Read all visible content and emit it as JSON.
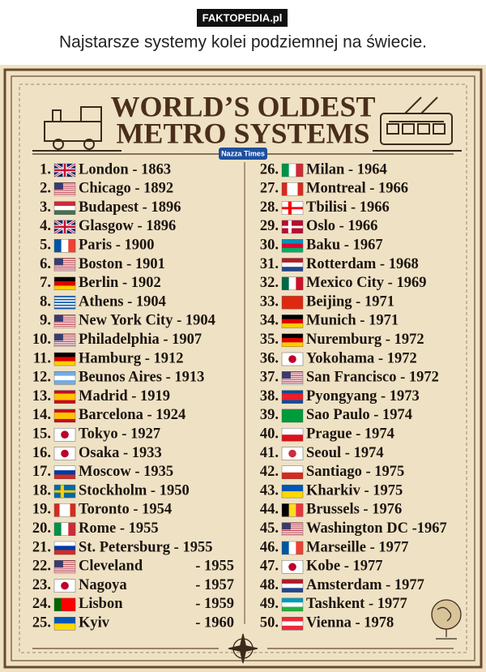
{
  "header": {
    "source": "FAKTOPEDIA.pl",
    "caption": "Najstarsze systemy kolei podziemnej na świecie."
  },
  "poster": {
    "title_line1": "WORLD’S OLDEST",
    "title_line2": "METRO SYSTEMS",
    "badge": "Nazza Times",
    "entries": [
      {
        "rank": "1.",
        "label": "London - 1863"
      },
      {
        "rank": "2.",
        "label": "Chicago - 1892"
      },
      {
        "rank": "3.",
        "label": "Budapest - 1896"
      },
      {
        "rank": "4.",
        "label": "Glasgow - 1896"
      },
      {
        "rank": "5.",
        "label": "Paris - 1900"
      },
      {
        "rank": "6.",
        "label": "Boston - 1901"
      },
      {
        "rank": "7.",
        "label": "Berlin - 1902"
      },
      {
        "rank": "8.",
        "label": "Athens - 1904"
      },
      {
        "rank": "9.",
        "label": "New York City - 1904"
      },
      {
        "rank": "10.",
        "label": "Philadelphia - 1907"
      },
      {
        "rank": "11.",
        "label": "Hamburg - 1912"
      },
      {
        "rank": "12.",
        "label": "Beunos Aires - 1913"
      },
      {
        "rank": "13.",
        "label": "Madrid - 1919"
      },
      {
        "rank": "14.",
        "label": "Barcelona - 1924"
      },
      {
        "rank": "15.",
        "label": "Tokyo - 1927"
      },
      {
        "rank": "16.",
        "label": "Osaka - 1933"
      },
      {
        "rank": "17.",
        "label": "Moscow - 1935"
      },
      {
        "rank": "18.",
        "label": "Stockholm - 1950"
      },
      {
        "rank": "19.",
        "label": "Toronto - 1954"
      },
      {
        "rank": "20.",
        "label": "Rome - 1955"
      },
      {
        "rank": "21.",
        "label": "St. Petersburg - 1955"
      },
      {
        "rank": "22.",
        "label": "Cleveland",
        "year": "- 1955"
      },
      {
        "rank": "23.",
        "label": "Nagoya",
        "year": "- 1957"
      },
      {
        "rank": "24.",
        "label": "Lisbon",
        "year": "- 1959"
      },
      {
        "rank": "25.",
        "label": "Kyiv",
        "year": "- 1960"
      },
      {
        "rank": "26.",
        "label": "Milan - 1964"
      },
      {
        "rank": "27.",
        "label": "Montreal - 1966"
      },
      {
        "rank": "28.",
        "label": "Tbilisi - 1966"
      },
      {
        "rank": "29.",
        "label": "Oslo - 1966"
      },
      {
        "rank": "30.",
        "label": "Baku - 1967"
      },
      {
        "rank": "31.",
        "label": "Rotterdam - 1968"
      },
      {
        "rank": "32.",
        "label": "Mexico City - 1969"
      },
      {
        "rank": "33.",
        "label": "Beijing - 1971"
      },
      {
        "rank": "34.",
        "label": "Munich - 1971"
      },
      {
        "rank": "35.",
        "label": "Nuremburg - 1972"
      },
      {
        "rank": "36.",
        "label": "Yokohama - 1972"
      },
      {
        "rank": "37.",
        "label": "San Francisco - 1972"
      },
      {
        "rank": "38.",
        "label": "Pyongyang - 1973"
      },
      {
        "rank": "39.",
        "label": "Sao Paulo - 1974"
      },
      {
        "rank": "40.",
        "label": "Prague - 1974"
      },
      {
        "rank": "41.",
        "label": "Seoul - 1974"
      },
      {
        "rank": "42.",
        "label": "Santiago - 1975"
      },
      {
        "rank": "43.",
        "label": "Kharkiv - 1975"
      },
      {
        "rank": "44.",
        "label": "Brussels - 1976"
      },
      {
        "rank": "45.",
        "label": "Washington DC -1967"
      },
      {
        "rank": "46.",
        "label": "Marseille - 1977"
      },
      {
        "rank": "47.",
        "label": "Kobe - 1977"
      },
      {
        "rank": "48.",
        "label": "Amsterdam - 1977"
      },
      {
        "rank": "49.",
        "label": "Tashkent - 1977"
      },
      {
        "rank": "50.",
        "label": "Vienna - 1978"
      }
    ]
  }
}
